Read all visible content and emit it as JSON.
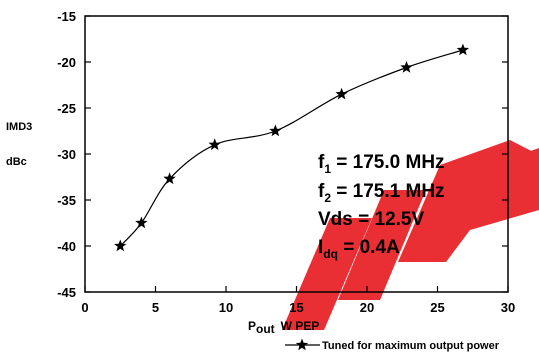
{
  "chart_data": {
    "type": "line",
    "ylabel_line1": "IMD3",
    "ylabel_line2": "dBc",
    "xlabel_main": "P",
    "xlabel_sub": "out",
    "xlabel_unit": "W  PEP",
    "xlim": [
      0,
      30
    ],
    "ylim": [
      -45,
      -15
    ],
    "grid": false,
    "xticks": [
      0,
      5,
      10,
      15,
      20,
      25,
      30
    ],
    "yticks": [
      -15,
      -20,
      -25,
      -30,
      -35,
      -40,
      -45
    ],
    "xtick_labels": [
      "0",
      "5",
      "10",
      "15",
      "20",
      "25",
      "30"
    ],
    "ytick_labels": [
      "-15",
      "-20",
      "-25",
      "-30",
      "-35",
      "-40",
      "-45"
    ],
    "series": [
      {
        "name": "Tuned for maximum output power",
        "x": [
          2.5,
          4.0,
          6.0,
          9.2,
          13.5,
          18.2,
          22.8,
          26.8
        ],
        "y": [
          -40.0,
          -37.5,
          -32.7,
          -29.0,
          -27.5,
          -23.5,
          -20.6,
          -18.7
        ]
      }
    ],
    "legend_position": "bottom-right",
    "annotations": {
      "f1_main": "f",
      "f1_sub": "1",
      "f1_val": "  = 175.0 MHz",
      "f2_main": "f",
      "f2_sub": "2",
      "f2_val": "  = 175.1 MHz",
      "vds": "Vds = 12.5V",
      "idq_main": "I",
      "idq_sub": "dq",
      "idq_val": " = 0.4A"
    },
    "colors": {
      "line": "#000000",
      "watermark": "#e8242a"
    }
  }
}
